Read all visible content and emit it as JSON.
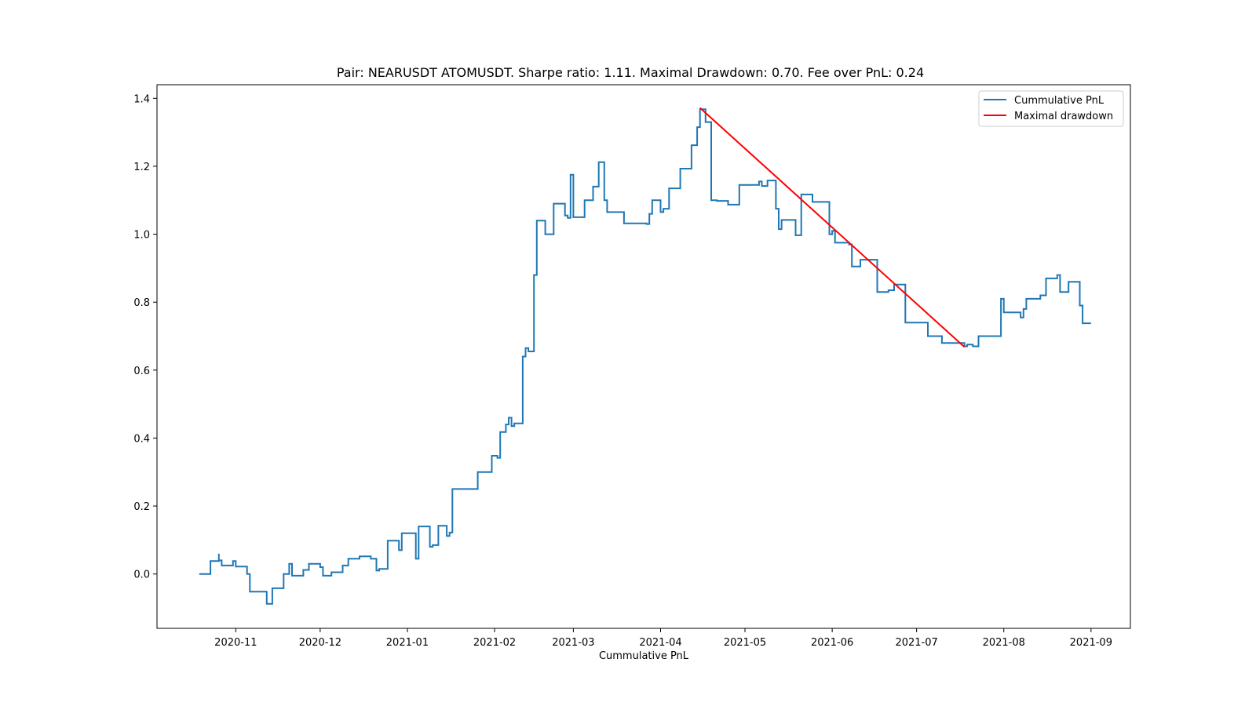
{
  "chart_data": {
    "type": "line",
    "title": "Pair: NEARUSDT ATOMUSDT. Sharpe ratio: 1.11. Maximal Drawdown: 0.70. Fee over PnL: 0.24",
    "xlabel": "Cummulative PnL",
    "ylabel": "",
    "x_type": "date",
    "xlim": [
      "2020-10-04",
      "2021-09-15"
    ],
    "ylim": [
      -0.16,
      1.44
    ],
    "x_ticks": [
      "2020-11-01",
      "2020-12-01",
      "2021-01-01",
      "2021-02-01",
      "2021-03-01",
      "2021-04-01",
      "2021-05-01",
      "2021-06-01",
      "2021-07-01",
      "2021-08-01",
      "2021-09-01"
    ],
    "x_tick_labels": [
      "2020-11",
      "2020-12",
      "2021-01",
      "2021-02",
      "2021-03",
      "2021-04",
      "2021-05",
      "2021-06",
      "2021-07",
      "2021-08",
      "2021-09"
    ],
    "y_ticks": [
      0.0,
      0.2,
      0.4,
      0.6,
      0.8,
      1.0,
      1.2,
      1.4
    ],
    "y_tick_labels": [
      "0.0",
      "0.2",
      "0.4",
      "0.6",
      "0.8",
      "1.0",
      "1.2",
      "1.4"
    ],
    "grid": false,
    "legend_position": "top-right",
    "series": [
      {
        "name": "Cummulative PnL",
        "color": "#1f77b4",
        "style": "step",
        "points": [
          [
            "2020-10-19",
            0.0
          ],
          [
            "2020-10-23",
            0.038
          ],
          [
            "2020-10-26",
            0.06
          ],
          [
            "2020-10-26",
            0.04
          ],
          [
            "2020-10-27",
            0.025
          ],
          [
            "2020-10-31",
            0.038
          ],
          [
            "2020-11-01",
            0.022
          ],
          [
            "2020-11-05",
            0.02
          ],
          [
            "2020-11-05",
            0.0
          ],
          [
            "2020-11-06",
            -0.052
          ],
          [
            "2020-11-12",
            -0.088
          ],
          [
            "2020-11-14",
            -0.042
          ],
          [
            "2020-11-18",
            0.0
          ],
          [
            "2020-11-20",
            0.03
          ],
          [
            "2020-11-21",
            -0.005
          ],
          [
            "2020-11-25",
            0.012
          ],
          [
            "2020-11-27",
            0.03
          ],
          [
            "2020-12-01",
            0.02
          ],
          [
            "2020-12-02",
            -0.005
          ],
          [
            "2020-12-05",
            0.005
          ],
          [
            "2020-12-09",
            0.025
          ],
          [
            "2020-12-11",
            0.045
          ],
          [
            "2020-12-15",
            0.052
          ],
          [
            "2020-12-19",
            0.045
          ],
          [
            "2020-12-21",
            0.01
          ],
          [
            "2020-12-22",
            0.015
          ],
          [
            "2020-12-25",
            0.098
          ],
          [
            "2020-12-29",
            0.07
          ],
          [
            "2020-12-30",
            0.12
          ],
          [
            "2021-01-04",
            0.065
          ],
          [
            "2021-01-04",
            0.045
          ],
          [
            "2021-01-05",
            0.14
          ],
          [
            "2021-01-09",
            0.08
          ],
          [
            "2021-01-10",
            0.085
          ],
          [
            "2021-01-12",
            0.142
          ],
          [
            "2021-01-15",
            0.112
          ],
          [
            "2021-01-16",
            0.122
          ],
          [
            "2021-01-17",
            0.25
          ],
          [
            "2021-01-26",
            0.3
          ],
          [
            "2021-01-31",
            0.348
          ],
          [
            "2021-02-02",
            0.342
          ],
          [
            "2021-02-03",
            0.418
          ],
          [
            "2021-02-05",
            0.44
          ],
          [
            "2021-02-06",
            0.46
          ],
          [
            "2021-02-07",
            0.435
          ],
          [
            "2021-02-08",
            0.443
          ],
          [
            "2021-02-11",
            0.64
          ],
          [
            "2021-02-12",
            0.665
          ],
          [
            "2021-02-13",
            0.655
          ],
          [
            "2021-02-15",
            0.88
          ],
          [
            "2021-02-16",
            1.04
          ],
          [
            "2021-02-19",
            1.0
          ],
          [
            "2021-02-22",
            1.09
          ],
          [
            "2021-02-26",
            1.055
          ],
          [
            "2021-02-27",
            1.048
          ],
          [
            "2021-02-28",
            1.175
          ],
          [
            "2021-03-01",
            1.05
          ],
          [
            "2021-03-05",
            1.1
          ],
          [
            "2021-03-08",
            1.14
          ],
          [
            "2021-03-10",
            1.212
          ],
          [
            "2021-03-12",
            1.1
          ],
          [
            "2021-03-13",
            1.065
          ],
          [
            "2021-03-19",
            1.032
          ],
          [
            "2021-03-27",
            1.03
          ],
          [
            "2021-03-28",
            1.06
          ],
          [
            "2021-03-29",
            1.1
          ],
          [
            "2021-04-01",
            1.065
          ],
          [
            "2021-04-02",
            1.075
          ],
          [
            "2021-04-04",
            1.135
          ],
          [
            "2021-04-08",
            1.193
          ],
          [
            "2021-04-12",
            1.262
          ],
          [
            "2021-04-14",
            1.315
          ],
          [
            "2021-04-15",
            1.368
          ],
          [
            "2021-04-17",
            1.33
          ],
          [
            "2021-04-19",
            1.1
          ],
          [
            "2021-04-21",
            1.098
          ],
          [
            "2021-04-25",
            1.087
          ],
          [
            "2021-04-29",
            1.145
          ],
          [
            "2021-05-06",
            1.155
          ],
          [
            "2021-05-07",
            1.142
          ],
          [
            "2021-05-09",
            1.158
          ],
          [
            "2021-05-12",
            1.075
          ],
          [
            "2021-05-13",
            1.015
          ],
          [
            "2021-05-14",
            1.042
          ],
          [
            "2021-05-19",
            0.997
          ],
          [
            "2021-05-21",
            1.117
          ],
          [
            "2021-05-25",
            1.095
          ],
          [
            "2021-05-31",
            1.0
          ],
          [
            "2021-06-01",
            1.01
          ],
          [
            "2021-06-02",
            0.975
          ],
          [
            "2021-06-07",
            0.97
          ],
          [
            "2021-06-08",
            0.905
          ],
          [
            "2021-06-11",
            0.925
          ],
          [
            "2021-06-17",
            0.83
          ],
          [
            "2021-06-21",
            0.835
          ],
          [
            "2021-06-23",
            0.852
          ],
          [
            "2021-06-27",
            0.74
          ],
          [
            "2021-07-05",
            0.7
          ],
          [
            "2021-07-10",
            0.68
          ],
          [
            "2021-07-18",
            0.67
          ],
          [
            "2021-07-19",
            0.675
          ],
          [
            "2021-07-21",
            0.67
          ],
          [
            "2021-07-23",
            0.7
          ],
          [
            "2021-07-28",
            0.7
          ],
          [
            "2021-07-31",
            0.81
          ],
          [
            "2021-08-01",
            0.77
          ],
          [
            "2021-08-07",
            0.755
          ],
          [
            "2021-08-08",
            0.78
          ],
          [
            "2021-08-09",
            0.81
          ],
          [
            "2021-08-14",
            0.82
          ],
          [
            "2021-08-16",
            0.87
          ],
          [
            "2021-08-20",
            0.88
          ],
          [
            "2021-08-21",
            0.83
          ],
          [
            "2021-08-24",
            0.86
          ],
          [
            "2021-08-28",
            0.79
          ],
          [
            "2021-08-29",
            0.738
          ],
          [
            "2021-09-01",
            0.738
          ]
        ]
      },
      {
        "name": "Maximal drawdown",
        "color": "#ff0000",
        "style": "line",
        "points": [
          [
            "2021-04-15",
            1.372
          ],
          [
            "2021-07-18",
            0.668
          ]
        ]
      }
    ]
  }
}
